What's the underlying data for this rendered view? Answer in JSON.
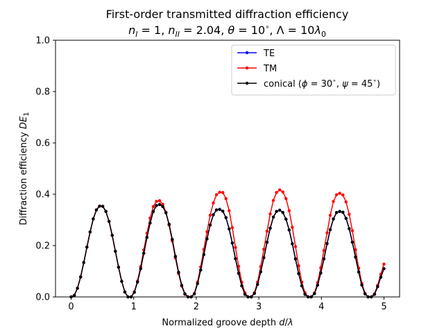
{
  "chart_data": {
    "type": "line",
    "title_line1": "First-order transmitted diffraction efficiency",
    "title_line2": {
      "n1_sym": "n",
      "n1_sub": "I",
      "n1_val": " = 1, ",
      "n2_sym": "n",
      "n2_sub": "II",
      "n2_val": " = 2.04, ",
      "theta_sym": "θ",
      "theta_val": " = 10",
      "deg": "∘",
      "lambda_part": ", Λ =  10",
      "lam_sym": "λ",
      "lam_sub": "0"
    },
    "xlabel": {
      "text": "Normalized groove depth ",
      "var1": "d",
      "slash": "/",
      "var2": "λ"
    },
    "ylabel": {
      "text": "Diffraction efficiency ",
      "sym": "DE",
      "sub": "1"
    },
    "xlim": [
      -0.25,
      5.25
    ],
    "ylim": [
      0,
      1.0
    ],
    "xticks": [
      0,
      1,
      2,
      3,
      4,
      5
    ],
    "yticks": [
      0.0,
      0.2,
      0.4,
      0.6,
      0.8,
      1.0
    ],
    "xtick_labels": [
      "0",
      "1",
      "2",
      "3",
      "4",
      "5"
    ],
    "ytick_labels": [
      "0.0",
      "0.2",
      "0.4",
      "0.6",
      "0.8",
      "1.0"
    ],
    "grid": false,
    "legend_placement": "top-right",
    "legend": {
      "te": "TE",
      "tm": "TM",
      "conical_name": "conical  (",
      "phi_sym": "ϕ",
      "phi_val": " = 30",
      "deg": "∘",
      "sep": ", ",
      "psi_sym": "ψ",
      "psi_val": " = 45",
      "close": ")"
    },
    "x": [
      0.0,
      0.0505,
      0.101,
      0.1515,
      0.202,
      0.2525,
      0.303,
      0.3535,
      0.404,
      0.4545,
      0.5051,
      0.5556,
      0.6061,
      0.6566,
      0.7071,
      0.7576,
      0.8081,
      0.8586,
      0.9091,
      0.9596,
      1.0101,
      1.0606,
      1.1111,
      1.1616,
      1.2121,
      1.2626,
      1.3131,
      1.3636,
      1.4141,
      1.4646,
      1.5152,
      1.5657,
      1.6162,
      1.6667,
      1.7172,
      1.7677,
      1.8182,
      1.8687,
      1.9192,
      1.9697,
      2.0202,
      2.0707,
      2.1212,
      2.1717,
      2.2222,
      2.2727,
      2.3232,
      2.3737,
      2.4242,
      2.4747,
      2.5253,
      2.5758,
      2.6263,
      2.6768,
      2.7273,
      2.7778,
      2.8283,
      2.8788,
      2.9293,
      2.9798,
      3.0303,
      3.0808,
      3.1313,
      3.1818,
      3.2323,
      3.2828,
      3.3333,
      3.3838,
      3.4343,
      3.4848,
      3.5354,
      3.5859,
      3.6364,
      3.6869,
      3.7374,
      3.7879,
      3.8384,
      3.8889,
      3.9394,
      3.9899,
      4.0404,
      4.0909,
      4.1414,
      4.1919,
      4.2424,
      4.2929,
      4.3434,
      4.3939,
      4.4444,
      4.4949,
      4.5455,
      4.596,
      4.6465,
      4.697,
      4.7475,
      4.798,
      4.8485,
      4.899,
      4.9495,
      5.0
    ],
    "series": [
      {
        "name": "TE",
        "color": "#0000ff",
        "y": [
          0.0,
          0.006,
          0.034,
          0.078,
          0.134,
          0.194,
          0.253,
          0.304,
          0.339,
          0.354,
          0.353,
          0.333,
          0.294,
          0.24,
          0.178,
          0.116,
          0.061,
          0.019,
          0.0,
          0.0,
          0.018,
          0.058,
          0.11,
          0.17,
          0.232,
          0.288,
          0.333,
          0.356,
          0.36,
          0.352,
          0.328,
          0.283,
          0.224,
          0.158,
          0.096,
          0.045,
          0.012,
          0.0,
          0.0,
          0.012,
          0.052,
          0.105,
          0.165,
          0.226,
          0.28,
          0.32,
          0.339,
          0.341,
          0.334,
          0.309,
          0.265,
          0.21,
          0.149,
          0.092,
          0.043,
          0.01,
          0.0,
          0.0,
          0.014,
          0.049,
          0.098,
          0.153,
          0.213,
          0.268,
          0.311,
          0.333,
          0.338,
          0.329,
          0.303,
          0.261,
          0.207,
          0.148,
          0.091,
          0.043,
          0.01,
          0.0,
          0.0,
          0.013,
          0.046,
          0.093,
          0.148,
          0.208,
          0.262,
          0.304,
          0.329,
          0.333,
          0.33,
          0.306,
          0.266,
          0.213,
          0.155,
          0.097,
          0.046,
          0.012,
          0.0,
          0.0,
          0.01,
          0.04,
          0.077,
          0.11
        ]
      },
      {
        "name": "TM",
        "color": "#ff0000",
        "y": [
          0.0,
          0.006,
          0.034,
          0.078,
          0.134,
          0.194,
          0.253,
          0.304,
          0.339,
          0.354,
          0.353,
          0.333,
          0.294,
          0.24,
          0.178,
          0.116,
          0.061,
          0.019,
          0.0,
          0.0,
          0.02,
          0.062,
          0.118,
          0.183,
          0.248,
          0.307,
          0.352,
          0.372,
          0.375,
          0.361,
          0.33,
          0.28,
          0.218,
          0.152,
          0.091,
          0.042,
          0.01,
          0.0,
          0.0,
          0.014,
          0.058,
          0.117,
          0.185,
          0.254,
          0.318,
          0.366,
          0.398,
          0.408,
          0.407,
          0.383,
          0.336,
          0.27,
          0.193,
          0.119,
          0.057,
          0.016,
          0.0,
          0.0,
          0.016,
          0.058,
          0.118,
          0.186,
          0.256,
          0.323,
          0.376,
          0.407,
          0.417,
          0.409,
          0.383,
          0.336,
          0.271,
          0.196,
          0.121,
          0.058,
          0.016,
          0.0,
          0.0,
          0.015,
          0.056,
          0.114,
          0.181,
          0.25,
          0.318,
          0.372,
          0.398,
          0.404,
          0.397,
          0.37,
          0.322,
          0.258,
          0.184,
          0.112,
          0.053,
          0.014,
          0.0,
          0.0,
          0.012,
          0.045,
          0.088,
          0.128
        ]
      },
      {
        "name": "conical",
        "color": "#000000",
        "y": [
          0.0,
          0.006,
          0.034,
          0.078,
          0.134,
          0.194,
          0.253,
          0.304,
          0.339,
          0.354,
          0.353,
          0.333,
          0.294,
          0.24,
          0.178,
          0.116,
          0.061,
          0.019,
          0.0,
          0.0,
          0.018,
          0.058,
          0.11,
          0.17,
          0.232,
          0.288,
          0.333,
          0.356,
          0.36,
          0.352,
          0.328,
          0.283,
          0.224,
          0.158,
          0.096,
          0.045,
          0.012,
          0.0,
          0.0,
          0.012,
          0.052,
          0.105,
          0.165,
          0.226,
          0.28,
          0.32,
          0.339,
          0.341,
          0.334,
          0.309,
          0.265,
          0.21,
          0.149,
          0.092,
          0.043,
          0.01,
          0.0,
          0.0,
          0.014,
          0.049,
          0.098,
          0.153,
          0.213,
          0.268,
          0.311,
          0.333,
          0.338,
          0.329,
          0.303,
          0.261,
          0.207,
          0.148,
          0.091,
          0.043,
          0.01,
          0.0,
          0.0,
          0.013,
          0.046,
          0.093,
          0.148,
          0.208,
          0.262,
          0.304,
          0.329,
          0.333,
          0.33,
          0.306,
          0.266,
          0.213,
          0.155,
          0.097,
          0.046,
          0.012,
          0.0,
          0.0,
          0.01,
          0.04,
          0.077,
          0.11
        ]
      }
    ]
  }
}
